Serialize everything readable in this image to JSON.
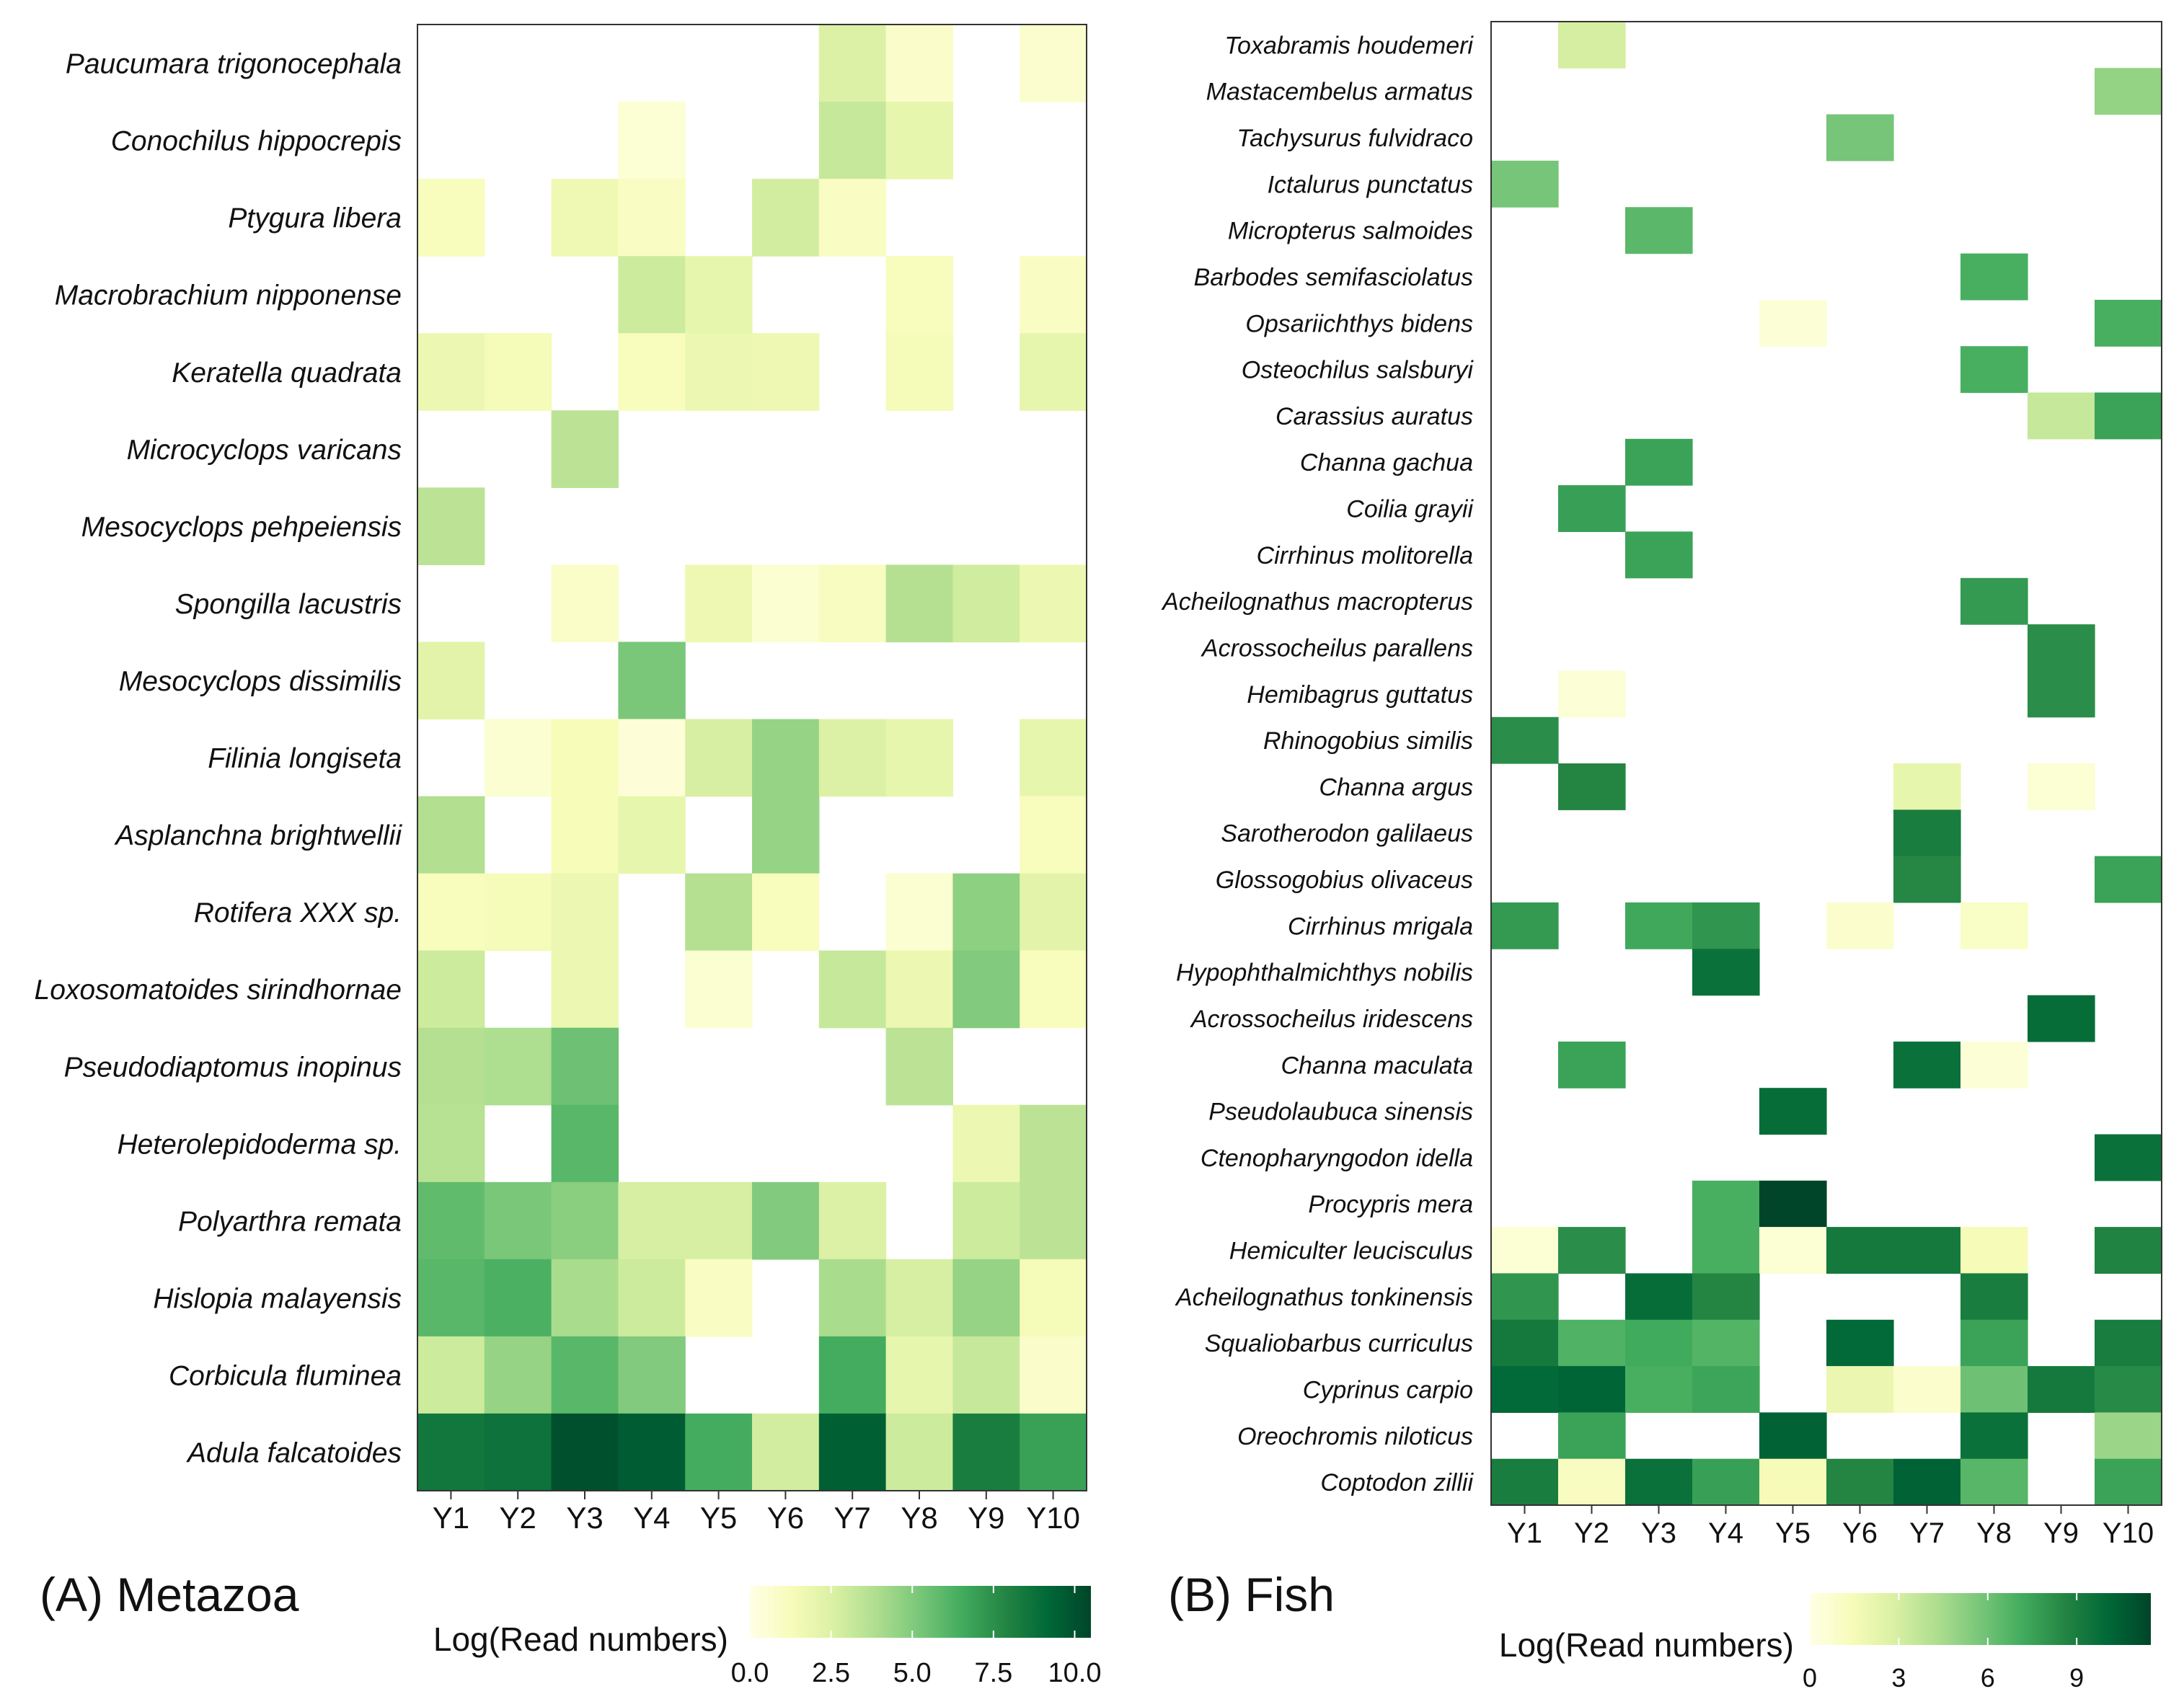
{
  "chart_data": [
    {
      "type": "heatmap",
      "title": "(A) Metazoa",
      "columns": [
        "Y1",
        "Y2",
        "Y3",
        "Y4",
        "Y5",
        "Y6",
        "Y7",
        "Y8",
        "Y9",
        "Y10"
      ],
      "rows": [
        "Paucumara trigonocephala",
        "Conochilus hippocrepis",
        "Ptygura libera",
        "Macrobrachium nipponense",
        "Keratella quadrata",
        "Microcyclops varicans",
        "Mesocyclops pehpeiensis",
        "Spongilla lacustris",
        "Mesocyclops dissimilis",
        "Filinia longiseta",
        "Asplanchna brightwellii",
        "Rotifera XXX sp.",
        "Loxosomatoides sirindhornae",
        "Pseudodiaptomus inopinus",
        "Heterolepidoderma sp.",
        "Polyarthra remata",
        "Hislopia malayensis",
        "Corbicula fluminea",
        "Adula falcatoides"
      ],
      "values": [
        [
          null,
          null,
          null,
          null,
          null,
          null,
          2.5,
          0.8,
          null,
          0.7
        ],
        [
          null,
          null,
          null,
          0.5,
          null,
          null,
          3.2,
          2.0,
          null,
          null
        ],
        [
          1.2,
          null,
          1.6,
          1.0,
          null,
          2.8,
          1.0,
          null,
          null,
          null
        ],
        [
          null,
          null,
          null,
          3.0,
          2.0,
          null,
          null,
          1.2,
          null,
          1.0
        ],
        [
          1.8,
          1.4,
          null,
          1.2,
          1.8,
          1.7,
          null,
          1.4,
          null,
          2.0
        ],
        [
          null,
          null,
          3.5,
          null,
          null,
          null,
          null,
          null,
          null,
          null
        ],
        [
          3.5,
          null,
          null,
          null,
          null,
          null,
          null,
          null,
          null,
          null
        ],
        [
          null,
          null,
          0.9,
          null,
          1.7,
          0.6,
          1.1,
          3.7,
          2.9,
          1.8
        ],
        [
          2.2,
          null,
          null,
          5.2,
          null,
          null,
          null,
          null,
          null,
          null
        ],
        [
          null,
          0.6,
          1.3,
          0.4,
          2.7,
          4.5,
          2.5,
          2.0,
          null,
          2.0
        ],
        [
          3.8,
          null,
          1.3,
          2.0,
          null,
          4.5,
          null,
          null,
          null,
          1.2
        ],
        [
          1.2,
          1.4,
          1.8,
          null,
          3.7,
          1.2,
          null,
          0.6,
          4.7,
          2.2
        ],
        [
          3.0,
          null,
          1.8,
          null,
          0.6,
          null,
          3.2,
          1.8,
          5.0,
          1.2
        ],
        [
          3.7,
          3.9,
          5.5,
          null,
          null,
          null,
          null,
          3.5,
          null,
          null
        ],
        [
          3.6,
          null,
          6.0,
          null,
          null,
          null,
          null,
          null,
          1.8,
          3.5
        ],
        [
          5.8,
          5.2,
          4.8,
          2.7,
          2.7,
          5.0,
          2.5,
          null,
          3.0,
          3.5
        ],
        [
          6.0,
          6.3,
          4.0,
          3.0,
          1.0,
          null,
          4.0,
          2.7,
          4.5,
          1.4
        ],
        [
          3.0,
          4.5,
          6.0,
          5.0,
          null,
          null,
          6.5,
          2.0,
          3.2,
          0.8
        ],
        [
          8.5,
          8.7,
          10.1,
          9.6,
          6.5,
          2.8,
          9.5,
          3.0,
          8.2,
          6.9
        ]
      ],
      "colorbar": {
        "title": "Log(Read numbers)",
        "ticks": [
          "0.0",
          "2.5",
          "5.0",
          "7.5",
          "10.0"
        ],
        "range": [
          0,
          10.5
        ]
      }
    },
    {
      "type": "heatmap",
      "title": "(B) Fish",
      "columns": [
        "Y1",
        "Y2",
        "Y3",
        "Y4",
        "Y5",
        "Y6",
        "Y7",
        "Y8",
        "Y9",
        "Y10"
      ],
      "rows": [
        "Toxabramis houdemeri",
        "Mastacembelus armatus",
        "Tachysurus fulvidraco",
        "Ictalurus punctatus",
        "Micropterus salmoides",
        "Barbodes semifasciolatus",
        "Opsariichthys bidens",
        "Osteochilus salsburyi",
        "Carassius auratus",
        "Channa gachua",
        "Coilia grayii",
        "Cirrhinus molitorella",
        "Acheilognathus macropterus",
        "Acrossocheilus parallens",
        "Hemibagrus guttatus",
        "Rhinogobius similis",
        "Channa argus",
        "Sarotherodon galilaeus",
        "Glossogobius olivaceus",
        "Cirrhinus mrigala",
        "Hypophthalmichthys nobilis",
        "Acrossocheilus iridescens",
        "Channa maculata",
        "Pseudolaubuca sinensis",
        "Ctenopharyngodon idella",
        "Procypris mera",
        "Hemiculter leucisculus",
        "Acheilognathus tonkinensis",
        "Squaliobarbus curriculus",
        "Cyprinus carpio",
        "Oreochromis niloticus",
        "Coptodon zillii"
      ],
      "values": [
        [
          null,
          3.0,
          null,
          null,
          null,
          null,
          null,
          null,
          null,
          null
        ],
        [
          null,
          null,
          null,
          null,
          null,
          null,
          null,
          null,
          null,
          5.0
        ],
        [
          null,
          null,
          null,
          null,
          null,
          5.8,
          null,
          null,
          null,
          null
        ],
        [
          5.8,
          null,
          null,
          null,
          null,
          null,
          null,
          null,
          null,
          null
        ],
        [
          null,
          null,
          6.5,
          null,
          null,
          null,
          null,
          null,
          null,
          null
        ],
        [
          null,
          null,
          null,
          null,
          null,
          null,
          null,
          7.0,
          null,
          null
        ],
        [
          null,
          null,
          null,
          null,
          0.5,
          null,
          null,
          null,
          null,
          7.0
        ],
        [
          null,
          null,
          null,
          null,
          null,
          null,
          null,
          7.0,
          null,
          null
        ],
        [
          null,
          null,
          null,
          null,
          null,
          null,
          null,
          null,
          3.5,
          7.5
        ],
        [
          null,
          null,
          7.5,
          null,
          null,
          null,
          null,
          null,
          null,
          null
        ],
        [
          null,
          7.6,
          null,
          null,
          null,
          null,
          null,
          null,
          null,
          null
        ],
        [
          null,
          null,
          7.5,
          null,
          null,
          null,
          null,
          null,
          null,
          null
        ],
        [
          null,
          null,
          null,
          null,
          null,
          null,
          null,
          7.8,
          null,
          null
        ],
        [
          null,
          null,
          null,
          null,
          null,
          null,
          null,
          null,
          8.3,
          null
        ],
        [
          null,
          0.5,
          null,
          null,
          null,
          null,
          null,
          null,
          8.3,
          null
        ],
        [
          8.3,
          null,
          null,
          null,
          null,
          null,
          null,
          null,
          null,
          null
        ],
        [
          null,
          8.6,
          null,
          null,
          null,
          null,
          2.2,
          null,
          0.6,
          null
        ],
        [
          null,
          null,
          null,
          null,
          null,
          null,
          9.0,
          null,
          null,
          null
        ],
        [
          null,
          null,
          null,
          null,
          null,
          null,
          8.5,
          null,
          null,
          7.5
        ],
        [
          7.8,
          null,
          7.3,
          8.0,
          null,
          0.8,
          null,
          1.0,
          null,
          null
        ],
        [
          null,
          null,
          null,
          9.6,
          null,
          null,
          null,
          null,
          null,
          null
        ],
        [
          null,
          null,
          null,
          null,
          null,
          null,
          null,
          null,
          9.8,
          null
        ],
        [
          null,
          7.5,
          null,
          null,
          null,
          null,
          9.6,
          0.5,
          null,
          null
        ],
        [
          null,
          null,
          null,
          null,
          9.8,
          null,
          null,
          null,
          null,
          null
        ],
        [
          null,
          null,
          null,
          null,
          null,
          null,
          null,
          null,
          null,
          9.6
        ],
        [
          null,
          null,
          null,
          7.0,
          11.5,
          null,
          null,
          null,
          null,
          null
        ],
        [
          0.6,
          8.3,
          null,
          7.0,
          0.6,
          9.2,
          9.2,
          1.5,
          null,
          8.7
        ],
        [
          8.0,
          null,
          9.8,
          8.6,
          null,
          null,
          null,
          9.0,
          null,
          null
        ],
        [
          9.2,
          6.8,
          7.2,
          6.7,
          null,
          10.0,
          null,
          7.5,
          null,
          9.0
        ],
        [
          10.0,
          10.2,
          7.0,
          7.4,
          null,
          2.0,
          0.8,
          6.0,
          9.2,
          8.4
        ],
        [
          null,
          7.5,
          null,
          null,
          10.3,
          null,
          null,
          9.6,
          null,
          4.8
        ],
        [
          9.0,
          1.2,
          9.6,
          7.6,
          1.5,
          8.6,
          10.3,
          6.6,
          null,
          7.5
        ]
      ],
      "colorbar": {
        "title": "Log(Read numbers)",
        "ticks": [
          "0",
          "3",
          "6",
          "9"
        ],
        "range": [
          0,
          11.5
        ]
      }
    }
  ]
}
